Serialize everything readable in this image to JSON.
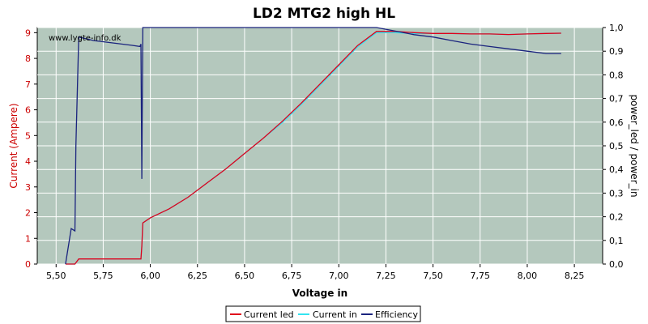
{
  "chart_data": {
    "type": "line",
    "title": "LD2 MTG2 high HL",
    "watermark": "www.lygte-info.dk",
    "xlabel": "Voltage in",
    "ylabel_left": "Current (Ampere)",
    "ylabel_right": "power_led / power_in",
    "xlim": [
      5.4,
      8.4
    ],
    "ylim_left": [
      0,
      9.2
    ],
    "ylim_right": [
      0,
      1.0
    ],
    "x_ticks": [
      "5,50",
      "5,75",
      "6,00",
      "6,25",
      "6,50",
      "6,75",
      "7,00",
      "7,25",
      "7,50",
      "7,75",
      "8,00",
      "8,25"
    ],
    "x_tick_values": [
      5.5,
      5.75,
      6.0,
      6.25,
      6.5,
      6.75,
      7.0,
      7.25,
      7.5,
      7.75,
      8.0,
      8.25
    ],
    "y_left_ticks": [
      "0",
      "1",
      "2",
      "3",
      "4",
      "5",
      "6",
      "7",
      "8",
      "9"
    ],
    "y_right_ticks": [
      "0,0",
      "0,1",
      "0,2",
      "0,3",
      "0,4",
      "0,5",
      "0,6",
      "0,7",
      "0,8",
      "0,9",
      "1,0"
    ],
    "grid": true,
    "legend_position": "bottom",
    "colors": {
      "plot_bg": "#b4c8bd",
      "grid": "#ffffff",
      "current_led": "#e0001b",
      "current_in": "#33e4f0",
      "efficiency": "#1a237e",
      "left_axis_label": "#cc0000",
      "axis_text": "#000000"
    },
    "series": [
      {
        "name": "Current led",
        "axis": "left",
        "x": [
          5.55,
          5.6,
          5.62,
          5.95,
          5.955,
          5.96,
          6.0,
          6.1,
          6.2,
          6.3,
          6.4,
          6.5,
          6.6,
          6.7,
          6.8,
          6.9,
          7.0,
          7.1,
          7.2,
          7.25,
          7.3,
          7.4,
          7.5,
          7.6,
          7.7,
          7.8,
          7.9,
          8.0,
          8.1,
          8.18
        ],
        "y": [
          0.0,
          0.0,
          0.2,
          0.2,
          0.7,
          1.6,
          1.8,
          2.15,
          2.6,
          3.15,
          3.7,
          4.3,
          4.9,
          5.55,
          6.25,
          7.0,
          7.75,
          8.5,
          9.05,
          9.05,
          9.05,
          9.0,
          8.97,
          8.97,
          8.95,
          8.95,
          8.93,
          8.95,
          8.97,
          8.98
        ]
      },
      {
        "name": "Current in",
        "axis": "left",
        "x": [
          5.55,
          5.6,
          5.62,
          5.95,
          5.955,
          5.96,
          6.0,
          6.1,
          6.2,
          6.3,
          6.4,
          6.5,
          6.6,
          6.7,
          6.8,
          6.9,
          7.0,
          7.1,
          7.2,
          7.25,
          7.3,
          7.4,
          7.5,
          7.6,
          7.7,
          7.8,
          7.9,
          8.0,
          8.1,
          8.18
        ],
        "y": [
          0.0,
          0.0,
          0.2,
          0.2,
          0.7,
          1.6,
          1.8,
          2.15,
          2.6,
          3.15,
          3.7,
          4.3,
          4.9,
          5.5,
          6.2,
          6.95,
          7.7,
          8.45,
          9.0,
          9.0,
          9.0,
          8.97,
          8.97,
          8.97,
          8.95,
          8.95,
          8.93,
          8.95,
          8.97,
          8.98
        ]
      },
      {
        "name": "Efficiency",
        "axis": "right",
        "x": [
          5.55,
          5.58,
          5.6,
          5.605,
          5.62,
          5.7,
          5.8,
          5.9,
          5.945,
          5.95,
          5.955,
          5.96,
          5.965,
          7.2,
          7.3,
          7.4,
          7.5,
          7.6,
          7.7,
          7.8,
          7.9,
          8.0,
          8.1,
          8.15,
          8.18
        ],
        "y": [
          0.0,
          0.15,
          0.14,
          0.5,
          0.96,
          0.945,
          0.935,
          0.925,
          0.92,
          0.93,
          0.36,
          1.0,
          1.0,
          1.0,
          0.985,
          0.97,
          0.96,
          0.945,
          0.93,
          0.92,
          0.91,
          0.9,
          0.89,
          0.89,
          0.89
        ]
      }
    ]
  }
}
